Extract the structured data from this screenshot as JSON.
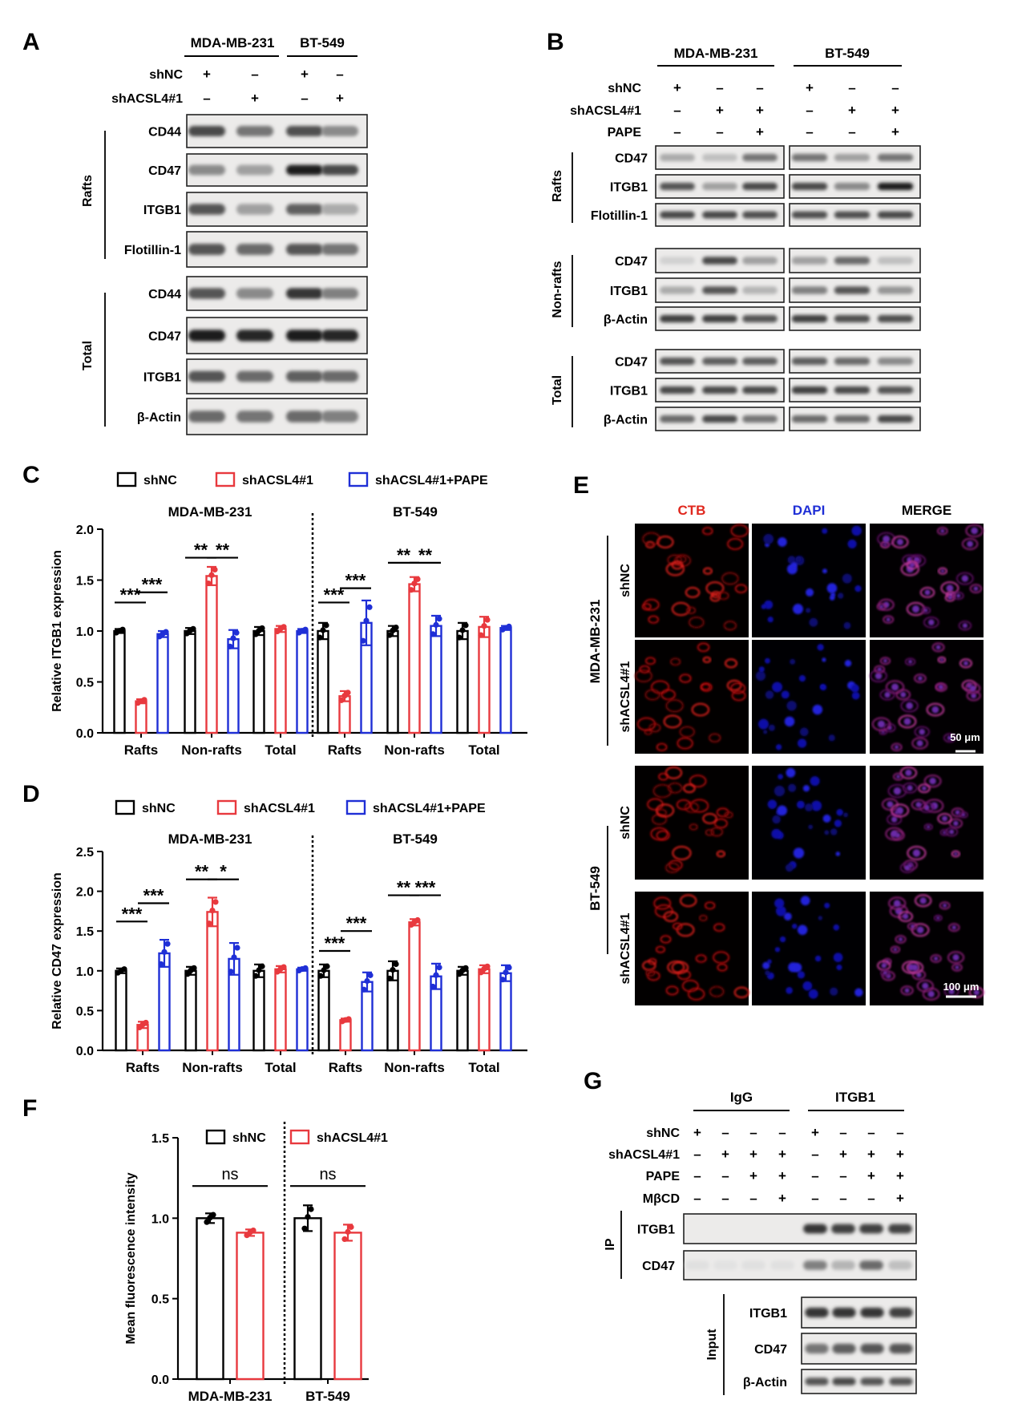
{
  "panel_letters": [
    "A",
    "B",
    "C",
    "D",
    "E",
    "F",
    "G"
  ],
  "panel_a": {
    "cell_lines": [
      "MDA-MB-231",
      "BT-549"
    ],
    "condition_rows": [
      {
        "label": "shNC",
        "signs": [
          "+",
          "–",
          "+",
          "–"
        ]
      },
      {
        "label": "shACSL4#1",
        "signs": [
          "–",
          "+",
          "–",
          "+"
        ]
      }
    ],
    "groups": [
      {
        "label": "Rafts",
        "bands": [
          "CD44",
          "CD47",
          "ITGB1",
          "Flotillin-1"
        ]
      },
      {
        "label": "Total",
        "bands": [
          "CD44",
          "CD47",
          "ITGB1",
          "β-Actin"
        ]
      }
    ]
  },
  "panel_b": {
    "cell_lines": [
      "MDA-MB-231",
      "BT-549"
    ],
    "condition_rows": [
      {
        "label": "shNC",
        "signs": [
          "+",
          "–",
          "–",
          "+",
          "–",
          "–"
        ]
      },
      {
        "label": "shACSL4#1",
        "signs": [
          "–",
          "+",
          "+",
          "–",
          "+",
          "+"
        ]
      },
      {
        "label": "PAPE",
        "signs": [
          "–",
          "–",
          "+",
          "–",
          "–",
          "+"
        ]
      }
    ],
    "groups": [
      {
        "label": "Rafts",
        "bands": [
          "CD47",
          "ITGB1",
          "Flotillin-1"
        ]
      },
      {
        "label": "Non-rafts",
        "bands": [
          "CD47",
          "ITGB1",
          "β-Actin"
        ]
      },
      {
        "label": "Total",
        "bands": [
          "CD47",
          "ITGB1",
          "β-Actin"
        ]
      }
    ]
  },
  "panel_e": {
    "columns": [
      {
        "label": "CTB",
        "color": "#e0281e"
      },
      {
        "label": "DAPI",
        "color": "#1f2fd6"
      },
      {
        "label": "MERGE",
        "color": "#000000"
      }
    ],
    "cell_lines": [
      "MDA-MB-231",
      "BT-549"
    ],
    "rows": [
      "shNC",
      "shACSL4#1",
      "shNC",
      "shACSL4#1"
    ],
    "scale_bars": [
      "50 μm",
      "100 μm"
    ]
  },
  "panel_g": {
    "groups": [
      "IgG",
      "ITGB1"
    ],
    "condition_rows": [
      {
        "label": "shNC",
        "signs": [
          "+",
          "–",
          "–",
          "–",
          "+",
          "–",
          "–",
          "–"
        ]
      },
      {
        "label": "shACSL4#1",
        "signs": [
          "–",
          "+",
          "+",
          "+",
          "–",
          "+",
          "+",
          "+"
        ]
      },
      {
        "label": "PAPE",
        "signs": [
          "–",
          "–",
          "+",
          "+",
          "–",
          "–",
          "+",
          "+"
        ]
      },
      {
        "label": "MβCD",
        "signs": [
          "–",
          "–",
          "–",
          "+",
          "–",
          "–",
          "–",
          "+"
        ]
      }
    ],
    "ip_label": "IP",
    "ip_bands": [
      "ITGB1",
      "CD47"
    ],
    "input_label": "Input",
    "input_bands": [
      "ITGB1",
      "CD47",
      "β-Actin"
    ]
  },
  "colors": {
    "shNC": "#000000",
    "shACSL4": "#e8393e",
    "PAPE": "#1f2fd6"
  },
  "chart_data": [
    {
      "id": "C",
      "type": "bar",
      "ylabel": "Relative ITGB1 expression",
      "ylim": [
        0,
        2.0
      ],
      "yticks": [
        "0.0",
        "0.5",
        "1.0",
        "1.5",
        "2.0"
      ],
      "legend": [
        "shNC",
        "shACSL4#1",
        "shACSL4#1+PAPE"
      ],
      "cell_lines": [
        "MDA-MB-231",
        "BT-549"
      ],
      "categories": [
        "Rafts",
        "Non-rafts",
        "Total",
        "Rafts",
        "Non-rafts",
        "Total"
      ],
      "series": [
        {
          "name": "shNC",
          "values": [
            1.0,
            1.0,
            1.0,
            1.0,
            1.0,
            1.0
          ],
          "err": [
            0.02,
            0.03,
            0.04,
            0.08,
            0.05,
            0.08
          ]
        },
        {
          "name": "shACSL4#1",
          "values": [
            0.31,
            1.54,
            1.02,
            0.36,
            1.46,
            1.04
          ],
          "err": [
            0.02,
            0.09,
            0.03,
            0.05,
            0.07,
            0.1
          ]
        },
        {
          "name": "shACSL4#1+PAPE",
          "values": [
            0.97,
            0.92,
            1.0,
            1.08,
            1.05,
            1.03
          ],
          "err": [
            0.03,
            0.09,
            0.02,
            0.22,
            0.1,
            0.02
          ]
        }
      ],
      "annotations": [
        {
          "group": 0,
          "from": 0,
          "to": 1,
          "level": 1.28,
          "text": "***"
        },
        {
          "group": 0,
          "from": 1,
          "to": 2,
          "level": 1.38,
          "text": "***"
        },
        {
          "group": 1,
          "from": 0,
          "to": 1,
          "level": 1.72,
          "text": "**"
        },
        {
          "group": 1,
          "from": 1,
          "to": 2,
          "level": 1.72,
          "text": "**"
        },
        {
          "group": 3,
          "from": 0,
          "to": 1,
          "level": 1.28,
          "text": "***"
        },
        {
          "group": 3,
          "from": 1,
          "to": 2,
          "level": 1.42,
          "text": "***"
        },
        {
          "group": 4,
          "from": 0,
          "to": 1,
          "level": 1.67,
          "text": "**"
        },
        {
          "group": 4,
          "from": 1,
          "to": 2,
          "level": 1.67,
          "text": "**"
        }
      ]
    },
    {
      "id": "D",
      "type": "bar",
      "ylabel": "Relative CD47 expression",
      "ylim": [
        0,
        2.5
      ],
      "yticks": [
        "0.0",
        "0.5",
        "1.0",
        "1.5",
        "2.0",
        "2.5"
      ],
      "legend": [
        "shNC",
        "shACSL4#1",
        "shACSL4#1+PAPE"
      ],
      "cell_lines": [
        "MDA-MB-231",
        "BT-549"
      ],
      "categories": [
        "Rafts",
        "Non-rafts",
        "Total",
        "Rafts",
        "Non-rafts",
        "Total"
      ],
      "series": [
        {
          "name": "shNC",
          "values": [
            1.0,
            1.0,
            1.0,
            1.0,
            1.0,
            1.0
          ],
          "err": [
            0.03,
            0.05,
            0.08,
            0.08,
            0.12,
            0.05
          ]
        },
        {
          "name": "shACSL4#1",
          "values": [
            0.32,
            1.74,
            1.02,
            0.38,
            1.61,
            1.02
          ],
          "err": [
            0.04,
            0.18,
            0.04,
            0.02,
            0.04,
            0.05
          ]
        },
        {
          "name": "shACSL4#1+PAPE",
          "values": [
            1.22,
            1.15,
            1.02,
            0.86,
            0.93,
            0.97
          ],
          "err": [
            0.17,
            0.2,
            0.02,
            0.12,
            0.16,
            0.1
          ]
        }
      ],
      "annotations": [
        {
          "group": 0,
          "from": 0,
          "to": 1,
          "level": 1.62,
          "text": "***"
        },
        {
          "group": 0,
          "from": 1,
          "to": 2,
          "level": 1.85,
          "text": "***"
        },
        {
          "group": 1,
          "from": 0,
          "to": 1,
          "level": 2.15,
          "text": "**"
        },
        {
          "group": 1,
          "from": 1,
          "to": 2,
          "level": 2.15,
          "text": "*"
        },
        {
          "group": 3,
          "from": 0,
          "to": 1,
          "level": 1.25,
          "text": "***"
        },
        {
          "group": 3,
          "from": 1,
          "to": 2,
          "level": 1.5,
          "text": "***"
        },
        {
          "group": 4,
          "from": 0,
          "to": 1,
          "level": 1.95,
          "text": "**"
        },
        {
          "group": 4,
          "from": 1,
          "to": 2,
          "level": 1.95,
          "text": "***"
        }
      ]
    },
    {
      "id": "F",
      "type": "bar",
      "ylabel": "Mean fluorescence intensity",
      "ylim": [
        0,
        1.5
      ],
      "yticks": [
        "0.0",
        "0.5",
        "1.0",
        "1.5"
      ],
      "legend": [
        "shNC",
        "shACSL4#1"
      ],
      "categories": [
        "MDA-MB-231",
        "BT-549"
      ],
      "series": [
        {
          "name": "shNC",
          "values": [
            1.0,
            1.0
          ],
          "err": [
            0.03,
            0.08
          ]
        },
        {
          "name": "shACSL4#1",
          "values": [
            0.91,
            0.91
          ],
          "err": [
            0.02,
            0.05
          ]
        }
      ],
      "annotations": [
        {
          "group": 0,
          "from": 0,
          "to": 1,
          "level": 1.2,
          "text": "ns"
        },
        {
          "group": 1,
          "from": 0,
          "to": 1,
          "level": 1.2,
          "text": "ns"
        }
      ]
    }
  ]
}
